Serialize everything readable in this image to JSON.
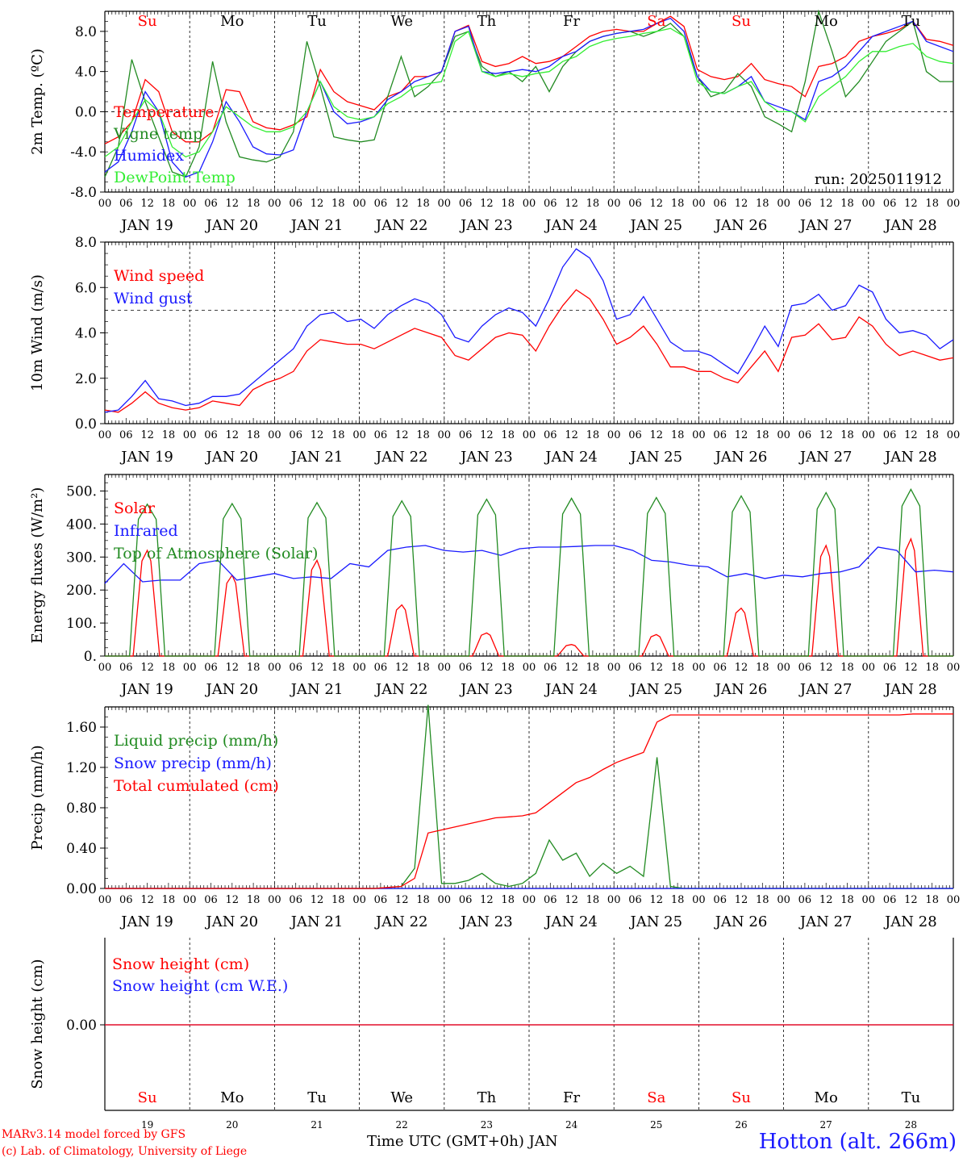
{
  "colors": {
    "red": "#ff0000",
    "green": "#228b22",
    "blue": "#1a1aff",
    "lightgreen": "#33ee33",
    "axis": "#000000"
  },
  "footer": {
    "model": "MARv3.14 model forced by GFS",
    "lab": "(c) Lab. of Climatology, University of Liege",
    "xlabel": "Time UTC (GMT+0h) JAN",
    "station": "Hotton (alt. 266m)"
  },
  "days": {
    "names": [
      "Su",
      "Mo",
      "Tu",
      "We",
      "Th",
      "Fr",
      "Sa",
      "Su",
      "Mo",
      "Tu"
    ],
    "name_colors": [
      "red",
      "black",
      "black",
      "black",
      "black",
      "black",
      "red",
      "red",
      "black",
      "black"
    ],
    "dates": [
      "JAN 19",
      "JAN 20",
      "JAN 21",
      "JAN 22",
      "JAN 23",
      "JAN 24",
      "JAN 25",
      "JAN 26",
      "JAN 27",
      "JAN 28"
    ],
    "numbers": [
      "19",
      "20",
      "21",
      "22",
      "23",
      "24",
      "25",
      "26",
      "27",
      "28"
    ],
    "hour_labels": [
      "00",
      "06",
      "12",
      "18"
    ],
    "end_label": "00"
  },
  "chart_data": [
    {
      "type": "line",
      "panel": "temperature",
      "ylabel": "2m Temp. (ºC)",
      "ylim": [
        -8,
        10
      ],
      "yticks": [
        "-8.0",
        "-4.0",
        "0.0",
        "4.0",
        "8.0"
      ],
      "ref_line": 0,
      "run_label": "run: 2025011912",
      "x_hours_step": 6,
      "series": [
        {
          "name": "Temperature",
          "color": "red",
          "values": [
            -3.2,
            -2.5,
            -1.0,
            3.2,
            2.0,
            -2.0,
            -3.0,
            -3.0,
            -2.0,
            2.2,
            2.0,
            -1.0,
            -1.6,
            -1.8,
            -1.3,
            -0.5,
            4.2,
            2.0,
            1.0,
            0.6,
            0.2,
            1.5,
            2.0,
            3.5,
            3.5,
            4.0,
            8.0,
            8.6,
            5.0,
            4.5,
            4.8,
            5.5,
            4.8,
            5.0,
            5.5,
            6.5,
            7.5,
            8.0,
            8.2,
            8.0,
            8.0,
            8.8,
            9.5,
            8.5,
            4.2,
            3.5,
            3.2,
            3.5,
            4.8,
            3.2,
            2.8,
            2.5,
            1.5,
            4.5,
            4.8,
            5.5,
            7.0,
            7.5,
            7.8,
            8.2,
            9.0,
            7.2,
            7.0,
            6.6
          ]
        },
        {
          "name": "Vigne temp",
          "color": "green",
          "values": [
            -6.5,
            -3.5,
            5.2,
            1.0,
            -2.5,
            -6.0,
            -6.5,
            -3.5,
            5.0,
            -1.0,
            -4.5,
            -4.8,
            -5.0,
            -4.5,
            -2.0,
            7.0,
            2.5,
            -2.5,
            -2.8,
            -3.0,
            -2.8,
            1.5,
            5.5,
            1.5,
            2.5,
            4.0,
            7.5,
            8.0,
            4.5,
            3.5,
            4.0,
            3.0,
            4.5,
            2.0,
            4.5,
            6.0,
            7.0,
            7.5,
            7.8,
            8.0,
            7.5,
            8.0,
            8.8,
            7.5,
            3.5,
            1.5,
            2.0,
            3.8,
            2.5,
            -0.5,
            -1.2,
            -2.0,
            3.0,
            10.0,
            6.0,
            1.5,
            3.0,
            5.0,
            7.0,
            8.0,
            9.0,
            4.0,
            3.0,
            3.0
          ]
        },
        {
          "name": "Humidex",
          "color": "blue",
          "values": [
            -6.0,
            -5.0,
            -2.0,
            2.0,
            0.0,
            -5.0,
            -6.5,
            -6.0,
            -3.0,
            1.0,
            -1.0,
            -3.5,
            -4.2,
            -4.3,
            -3.8,
            0.0,
            3.0,
            0.0,
            -1.2,
            -1.0,
            -0.5,
            1.2,
            2.0,
            3.0,
            3.5,
            4.0,
            8.0,
            8.5,
            4.0,
            3.8,
            4.0,
            4.2,
            4.0,
            4.5,
            5.5,
            6.0,
            7.0,
            7.5,
            7.8,
            8.0,
            8.2,
            8.8,
            9.3,
            8.0,
            3.5,
            2.0,
            1.8,
            2.5,
            3.5,
            1.0,
            0.5,
            0.0,
            -0.8,
            3.0,
            3.5,
            4.5,
            6.0,
            7.5,
            8.0,
            8.5,
            9.0,
            7.0,
            6.5,
            6.0
          ]
        },
        {
          "name": "DewPoint Temp",
          "color": "lightgreen",
          "values": [
            -4.5,
            -3.5,
            -1.0,
            1.2,
            0.0,
            -3.5,
            -4.5,
            -4.0,
            -2.0,
            0.5,
            -0.5,
            -1.5,
            -2.0,
            -2.0,
            -1.5,
            0.0,
            3.0,
            0.5,
            -0.5,
            -0.8,
            -0.5,
            0.8,
            1.5,
            2.5,
            2.8,
            3.0,
            7.0,
            8.0,
            4.0,
            3.5,
            3.8,
            3.5,
            3.8,
            4.0,
            5.0,
            5.5,
            6.5,
            7.0,
            7.3,
            7.5,
            7.8,
            8.0,
            8.3,
            7.5,
            3.0,
            2.0,
            1.8,
            2.5,
            3.0,
            1.0,
            0.0,
            0.0,
            -1.0,
            1.5,
            2.5,
            3.5,
            5.0,
            6.0,
            6.0,
            6.5,
            6.8,
            5.5,
            5.0,
            4.8
          ]
        }
      ]
    },
    {
      "type": "line",
      "panel": "wind",
      "ylabel": "10m Wind (m/s)",
      "ylim": [
        0,
        8
      ],
      "yticks": [
        "0.0",
        "2.0",
        "4.0",
        "6.0",
        "8.0"
      ],
      "ref_line": 5,
      "x_hours_step": 6,
      "series": [
        {
          "name": "Wind speed",
          "color": "red",
          "values": [
            0.6,
            0.5,
            0.9,
            1.4,
            0.9,
            0.7,
            0.6,
            0.7,
            1.0,
            0.9,
            0.8,
            1.5,
            1.8,
            2.0,
            2.3,
            3.2,
            3.7,
            3.6,
            3.5,
            3.5,
            3.3,
            3.6,
            3.9,
            4.2,
            4.0,
            3.8,
            3.0,
            2.8,
            3.3,
            3.8,
            4.0,
            3.9,
            3.2,
            4.3,
            5.2,
            5.9,
            5.5,
            4.6,
            3.5,
            3.8,
            4.3,
            3.5,
            2.5,
            2.5,
            2.3,
            2.3,
            2.0,
            1.8,
            2.5,
            3.2,
            2.3,
            3.8,
            3.9,
            4.4,
            3.7,
            3.8,
            4.7,
            4.3,
            3.5,
            3.0,
            3.2,
            3.0,
            2.8,
            2.9
          ]
        },
        {
          "name": "Wind gust",
          "color": "blue",
          "values": [
            0.5,
            0.6,
            1.2,
            1.9,
            1.1,
            1.0,
            0.8,
            0.9,
            1.2,
            1.2,
            1.3,
            1.8,
            2.3,
            2.8,
            3.3,
            4.3,
            4.8,
            4.9,
            4.5,
            4.6,
            4.2,
            4.8,
            5.2,
            5.5,
            5.3,
            4.8,
            3.8,
            3.6,
            4.3,
            4.8,
            5.1,
            4.9,
            4.3,
            5.5,
            6.9,
            7.7,
            7.3,
            6.3,
            4.6,
            4.8,
            5.6,
            4.6,
            3.6,
            3.2,
            3.2,
            3.0,
            2.6,
            2.2,
            3.2,
            4.3,
            3.4,
            5.2,
            5.3,
            5.7,
            5.0,
            5.2,
            6.1,
            5.8,
            4.6,
            4.0,
            4.1,
            3.9,
            3.3,
            3.7
          ]
        }
      ]
    },
    {
      "type": "line",
      "panel": "energy",
      "ylabel": "Energy fluxes (W/m²)",
      "ylim": [
        0,
        550
      ],
      "yticks": [
        "0.",
        "100.",
        "200.",
        "300.",
        "400.",
        "500."
      ],
      "x_hours_step": 6,
      "series": [
        {
          "name": "Solar",
          "color": "red",
          "peaks": [
            320,
            245,
            290,
            155,
            70,
            35,
            65,
            145,
            335,
            355
          ]
        },
        {
          "name": "Infrared",
          "color": "blue",
          "values": [
            220,
            280,
            225,
            230,
            230,
            280,
            290,
            230,
            240,
            250,
            235,
            240,
            235,
            280,
            270,
            320,
            330,
            335,
            320,
            315,
            320,
            305,
            325,
            330,
            330,
            332,
            335,
            335,
            320,
            290,
            285,
            275,
            270,
            240,
            250,
            235,
            245,
            240,
            250,
            255,
            270,
            330,
            320,
            255,
            260,
            255
          ]
        },
        {
          "name": "Top of Atmosphere (Solar)",
          "color": "green",
          "peaks": [
            460,
            462,
            465,
            470,
            475,
            478,
            480,
            485,
            495,
            505
          ]
        }
      ]
    },
    {
      "type": "line",
      "panel": "precip",
      "ylabel": "Precip (mm/h)",
      "ylim": [
        0,
        1.8
      ],
      "yticks": [
        "0.00",
        "0.40",
        "0.80",
        "1.20",
        "1.60"
      ],
      "x_hours_step": 6,
      "series": [
        {
          "name": "Liquid precip (mm/h)",
          "color": "green",
          "values": [
            0,
            0,
            0,
            0,
            0,
            0,
            0,
            0,
            0,
            0,
            0,
            0,
            0,
            0,
            0,
            0,
            0,
            0,
            0,
            0,
            0,
            0.01,
            0.02,
            0.2,
            1.82,
            0.05,
            0.05,
            0.08,
            0.15,
            0.05,
            0.02,
            0.05,
            0.15,
            0.48,
            0.28,
            0.35,
            0.12,
            0.25,
            0.15,
            0.22,
            0.12,
            1.3,
            0.02,
            0,
            0,
            0,
            0,
            0,
            0,
            0,
            0,
            0,
            0,
            0,
            0,
            0,
            0,
            0,
            0,
            0,
            0,
            0,
            0,
            0
          ]
        },
        {
          "name": "Snow precip (mm/h)",
          "color": "blue",
          "values": [
            0,
            0,
            0,
            0,
            0,
            0,
            0,
            0,
            0,
            0,
            0,
            0,
            0,
            0,
            0,
            0,
            0,
            0,
            0,
            0,
            0,
            0,
            0,
            0,
            0,
            0,
            0,
            0,
            0,
            0,
            0,
            0,
            0,
            0,
            0,
            0,
            0,
            0,
            0,
            0,
            0,
            0,
            0,
            0,
            0,
            0,
            0,
            0,
            0,
            0,
            0,
            0,
            0,
            0,
            0,
            0,
            0,
            0,
            0,
            0,
            0,
            0,
            0,
            0
          ]
        },
        {
          "name": "Total cumulated (cm)",
          "color": "red",
          "values": [
            0,
            0,
            0,
            0,
            0,
            0,
            0,
            0,
            0,
            0,
            0,
            0,
            0,
            0,
            0,
            0,
            0,
            0,
            0,
            0,
            0,
            0.01,
            0.02,
            0.1,
            0.55,
            0.58,
            0.61,
            0.64,
            0.67,
            0.7,
            0.71,
            0.72,
            0.75,
            0.85,
            0.95,
            1.05,
            1.1,
            1.18,
            1.25,
            1.3,
            1.35,
            1.65,
            1.72,
            1.72,
            1.72,
            1.72,
            1.72,
            1.72,
            1.72,
            1.72,
            1.72,
            1.72,
            1.72,
            1.72,
            1.72,
            1.72,
            1.72,
            1.72,
            1.72,
            1.72,
            1.73,
            1.73,
            1.73,
            1.73
          ]
        }
      ]
    },
    {
      "type": "line",
      "panel": "snow",
      "ylabel": "Snow height (cm)",
      "yticks": [
        "0.00"
      ],
      "series": [
        {
          "name": "Snow height (cm)",
          "color": "red",
          "values": [
            0,
            0
          ]
        },
        {
          "name": "Snow height (cm W.E.)",
          "color": "blue",
          "values": [
            0,
            0
          ]
        }
      ]
    }
  ]
}
